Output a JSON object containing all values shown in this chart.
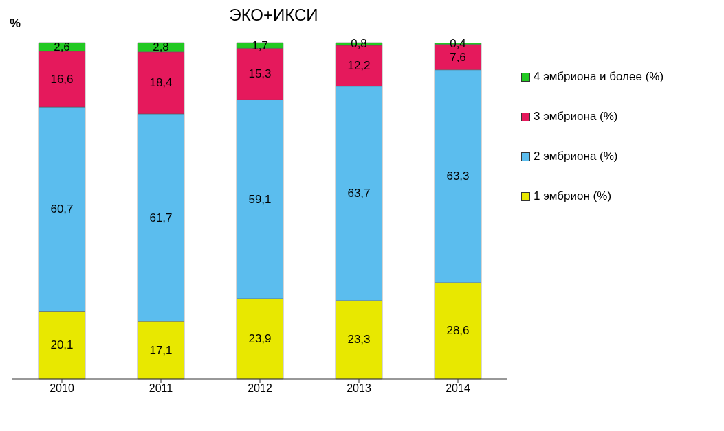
{
  "chart_data": {
    "type": "bar",
    "title": "ЭКО+ИКСИ",
    "ylabel": "%",
    "categories": [
      "2010",
      "2011",
      "2012",
      "2013",
      "2014"
    ],
    "stacked": true,
    "grid": false,
    "legend": "right",
    "tick_labels": "x",
    "series": [
      {
        "name": "1 эмбрион (%)",
        "color": "#e8e800",
        "values": [
          20.1,
          17.1,
          23.9,
          23.3,
          28.6
        ],
        "value_labels": [
          "20,1",
          "17,1",
          "23,9",
          "23,3",
          "28,6"
        ]
      },
      {
        "name": "2 эмбриона (%)",
        "color": "#5bbdee",
        "values": [
          60.7,
          61.7,
          59.1,
          63.7,
          63.3
        ],
        "value_labels": [
          "60,7",
          "61,7",
          "59,1",
          "63,7",
          "63,3"
        ]
      },
      {
        "name": "3 эмбриона (%)",
        "color": "#e5195c",
        "values": [
          16.6,
          18.4,
          15.3,
          12.2,
          7.6
        ],
        "value_labels": [
          "16,6",
          "18,4",
          "15,3",
          "12,2",
          "7,6"
        ]
      },
      {
        "name": "4 эмбриона и более (%)",
        "color": "#22c922",
        "values": [
          2.6,
          2.8,
          1.7,
          0.8,
          0.4
        ],
        "value_labels": [
          "2,6",
          "2,8",
          "1,7",
          "0,8",
          "0,4"
        ]
      }
    ]
  }
}
